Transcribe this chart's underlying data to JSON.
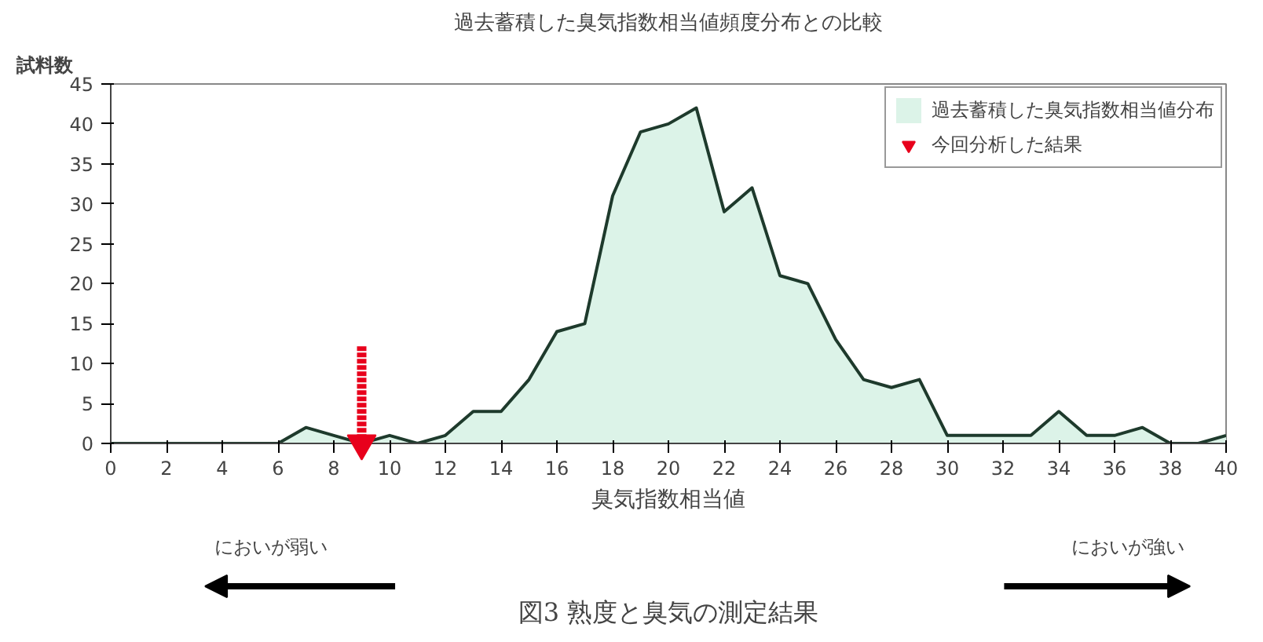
{
  "chart_data": {
    "type": "area",
    "title": "過去蓄積した臭気指数相当値頻度分布との比較",
    "xlabel": "臭気指数相当値",
    "ylabel": "試料数",
    "x": [
      0,
      1,
      2,
      3,
      4,
      5,
      6,
      7,
      8,
      9,
      10,
      11,
      12,
      13,
      14,
      15,
      16,
      17,
      18,
      19,
      20,
      21,
      22,
      23,
      24,
      25,
      26,
      27,
      28,
      29,
      30,
      31,
      32,
      33,
      34,
      35,
      36,
      37,
      38,
      39,
      40
    ],
    "series": [
      {
        "name": "過去蓄積した臭気指数相当値分布",
        "color": "#dcf3e8",
        "values": [
          0,
          0,
          0,
          0,
          0,
          0,
          0,
          2,
          1,
          0,
          1,
          0,
          1,
          4,
          4,
          8,
          14,
          15,
          31,
          39,
          40,
          42,
          29,
          32,
          21,
          20,
          13,
          8,
          7,
          8,
          1,
          1,
          1,
          1,
          4,
          1,
          1,
          2,
          0,
          0,
          1
        ]
      },
      {
        "type": "scatter",
        "name": "今回分析した結果",
        "color": "#e8001c",
        "x": [
          9
        ],
        "values": [
          0
        ],
        "marker": "triangle"
      }
    ],
    "xlim": [
      0,
      40
    ],
    "ylim": [
      0,
      45
    ],
    "xticks": [
      0,
      2,
      4,
      6,
      8,
      10,
      12,
      14,
      16,
      18,
      20,
      22,
      24,
      26,
      28,
      30,
      32,
      34,
      36,
      38,
      40
    ],
    "yticks": [
      0,
      5,
      10,
      15,
      20,
      25,
      30,
      35,
      40,
      45
    ],
    "grid": false,
    "legend": "top right",
    "ref_lines": [
      {
        "axis": "x",
        "value": 9,
        "color": "#e8001c",
        "line_style": "dashed"
      }
    ],
    "annotations": [
      "においが弱い",
      "においが強い",
      "図3 熟度と臭気の測定結果"
    ]
  }
}
